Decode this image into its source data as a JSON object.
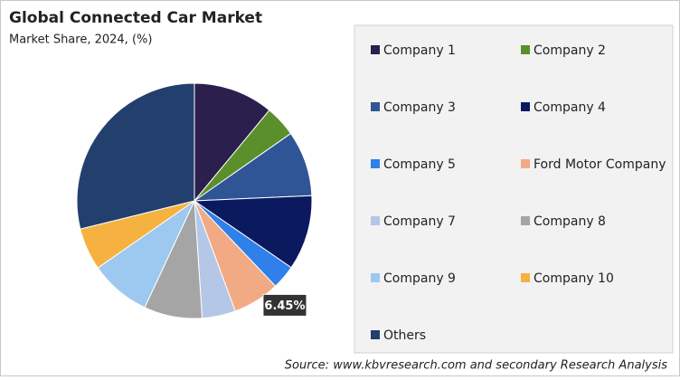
{
  "chart_data": {
    "type": "pie",
    "title": "Global Connected Car Market",
    "subtitle": "Market Share, 2024, (%)",
    "categories": [
      "Company 1",
      "Company 2",
      "Company 3",
      "Company 4",
      "Company 5",
      "Ford Motor Company",
      "Company 7",
      "Company 8",
      "Company 9",
      "Company 10",
      "Others"
    ],
    "values": [
      11,
      4.3,
      9,
      10.3,
      3.3,
      6.45,
      4.6,
      8,
      8.4,
      5.8,
      28.85
    ],
    "value_labels": [
      null,
      null,
      null,
      null,
      null,
      "6.45%",
      null,
      null,
      null,
      null,
      null
    ],
    "colors": [
      "#2b1f4e",
      "#5b8f2c",
      "#2f5597",
      "#0b1a5e",
      "#2f80ea",
      "#f2aa84",
      "#b4c7e7",
      "#a5a5a5",
      "#9dc9f0",
      "#f5b240",
      "#223f6e"
    ],
    "legend": "right",
    "source": "Source: www.kbvresearch.com and secondary Research Analysis"
  }
}
